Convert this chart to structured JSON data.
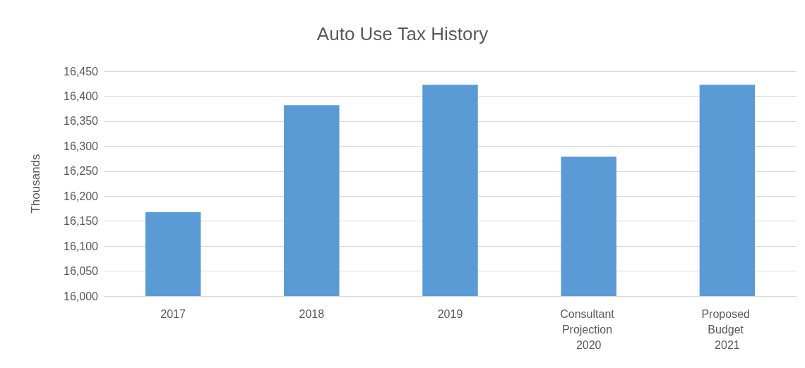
{
  "chart_data": {
    "type": "bar",
    "title": "Auto Use Tax History",
    "ylabel": "Thousands",
    "categories": [
      "2017",
      "2018",
      "2019",
      "Consultant Projection 2020",
      "Proposed Budget 2021"
    ],
    "values": [
      16168,
      16382,
      16423,
      16279,
      16423
    ],
    "color": "#5b9bd5",
    "ylim": [
      16000,
      16450
    ],
    "yticks": [
      {
        "value": 16000,
        "label": "16,000"
      },
      {
        "value": 16050,
        "label": "16,050"
      },
      {
        "value": 16100,
        "label": "16,100"
      },
      {
        "value": 16150,
        "label": "16,150"
      },
      {
        "value": 16200,
        "label": "16,200"
      },
      {
        "value": 16250,
        "label": "16,250"
      },
      {
        "value": 16300,
        "label": "16,300"
      },
      {
        "value": 16350,
        "label": "16,350"
      },
      {
        "value": 16400,
        "label": "16,400"
      },
      {
        "value": 16450,
        "label": "16,450"
      }
    ],
    "grid": "y"
  }
}
